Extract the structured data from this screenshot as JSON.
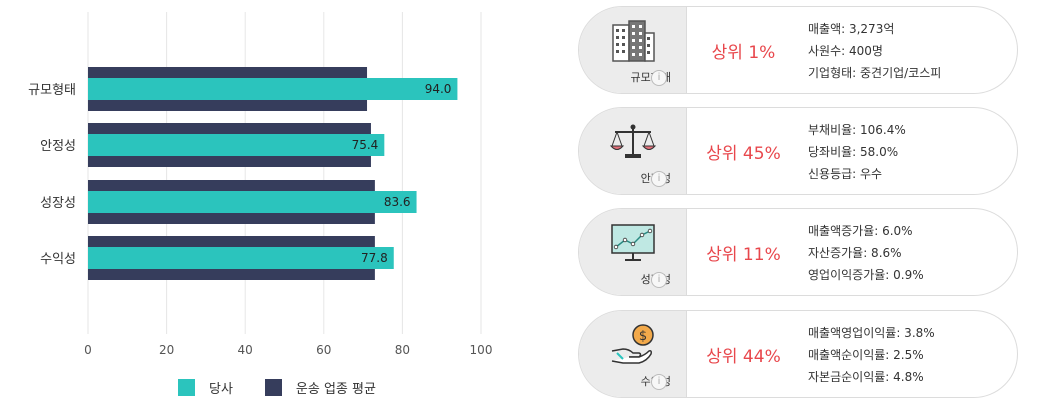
{
  "chart_data": {
    "type": "bar",
    "orientation": "horizontal",
    "categories": [
      "규모형태",
      "안정성",
      "성장성",
      "수익성"
    ],
    "series": [
      {
        "name": "당사",
        "values": [
          94.0,
          75.4,
          83.6,
          77.8
        ],
        "color": "#2bc4bd"
      },
      {
        "name": "운송 업종 평균",
        "values": [
          71,
          72,
          73,
          73
        ],
        "color": "#363d5c"
      }
    ],
    "data_labels": [
      "94.0",
      "75.4",
      "83.6",
      "77.8"
    ],
    "xlim": [
      0,
      100
    ],
    "x_ticks": [
      "0",
      "20",
      "40",
      "60",
      "80",
      "100"
    ],
    "grid": true,
    "legend": "bottom"
  },
  "legend": {
    "company": "당사",
    "industry": "운송 업종 평균"
  },
  "cards": [
    {
      "label": "규모형태",
      "icon": "building-icon",
      "rank": "상위 1%",
      "stats": [
        "매출액: 3,273억",
        "사원수: 400명",
        "기업형태: 중견기업/코스피"
      ]
    },
    {
      "label": "안정성",
      "icon": "scale-icon",
      "rank": "상위 45%",
      "stats": [
        "부채비율: 106.4%",
        "당좌비율: 58.0%",
        "신용등급: 우수"
      ]
    },
    {
      "label": "성장성",
      "icon": "growth-chart-icon",
      "rank": "상위 11%",
      "stats": [
        "매출액증가율: 6.0%",
        "자산증가율: 8.6%",
        "영업이익증가율: 0.9%"
      ]
    },
    {
      "label": "수익성",
      "icon": "coin-hand-icon",
      "rank": "상위 44%",
      "stats": [
        "매출액영업이익률: 3.8%",
        "매출액순이익률: 2.5%",
        "자본금순이익률: 4.8%"
      ]
    }
  ],
  "info_glyph": "i",
  "colors": {
    "accent_red": "#e8474c",
    "teal": "#2bc4bd",
    "navy": "#363d5c"
  }
}
